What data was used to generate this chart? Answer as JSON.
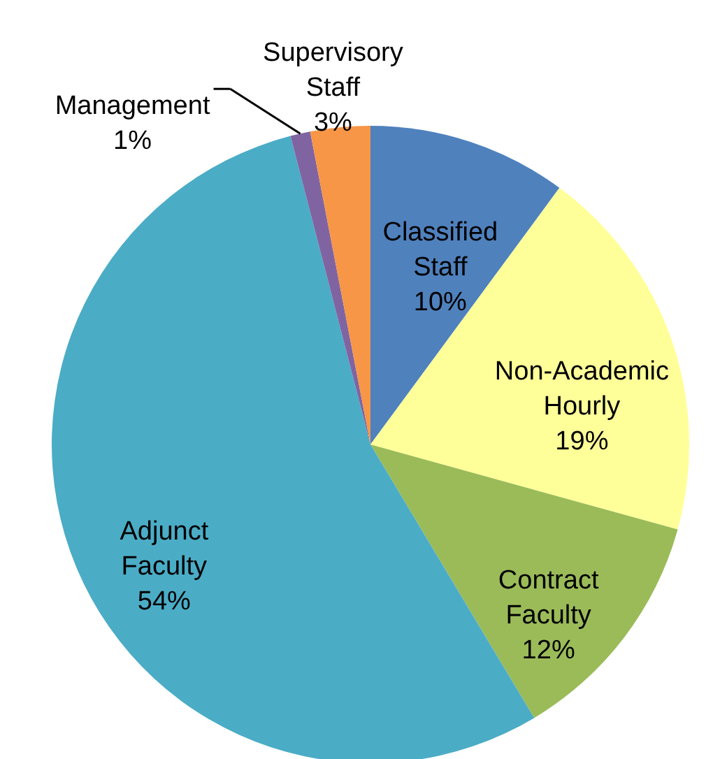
{
  "chart_data": {
    "type": "pie",
    "categories": [
      "Classified Staff",
      "Non-Academic Hourly",
      "Contract Faculty",
      "Adjunct Faculty",
      "Management",
      "Supervisory Staff"
    ],
    "values": [
      10,
      19,
      12,
      54,
      1,
      3
    ],
    "colors": [
      "#4f81bd",
      "#ffff99",
      "#9bbb59",
      "#4bacc6",
      "#8064a2",
      "#f79646"
    ],
    "value_labels": [
      "10%",
      "19%",
      "12%",
      "54%",
      "1%",
      "3%"
    ]
  }
}
